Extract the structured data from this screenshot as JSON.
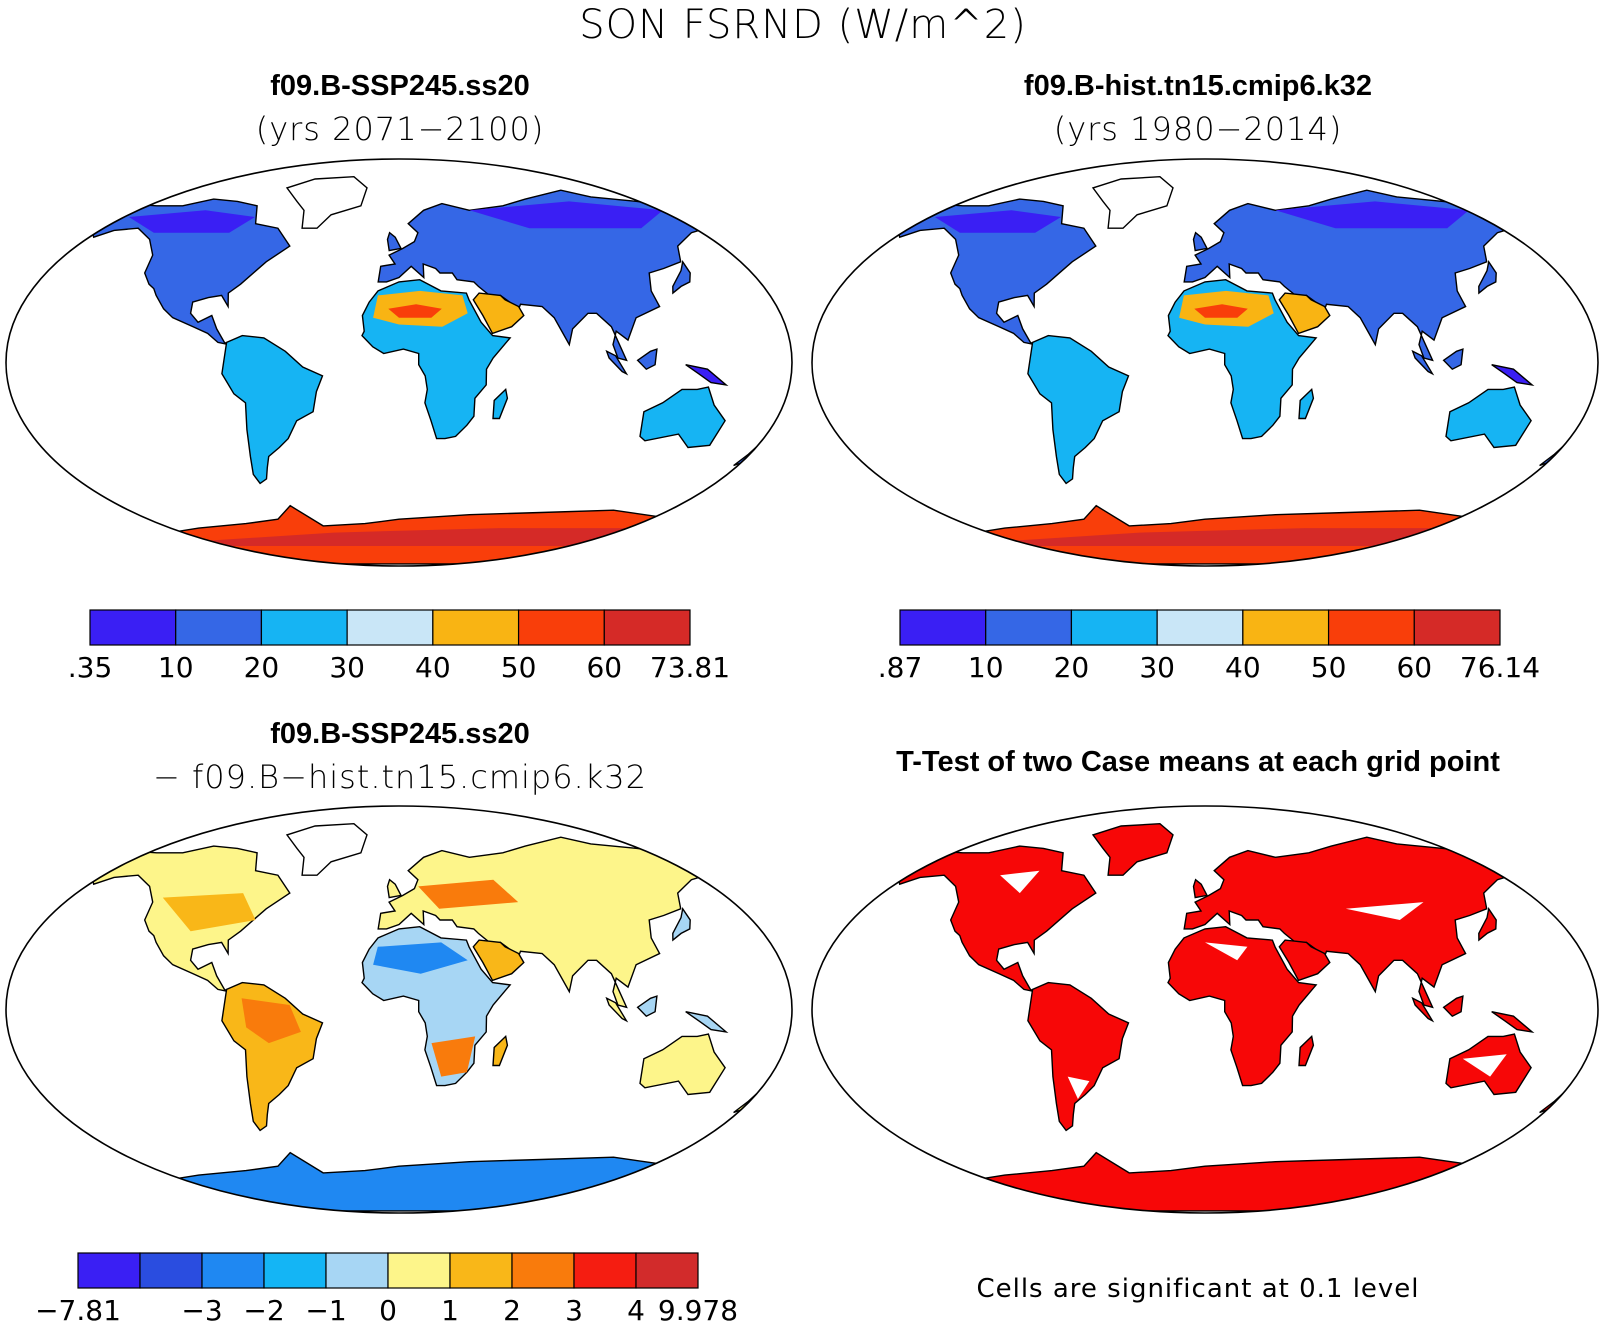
{
  "title": "SON FSRND (W/m^2)",
  "panels": [
    {
      "id": "p1",
      "title": "f09.B-SSP245.ss20",
      "subtitle": "(yrs 2071−2100)",
      "colorbar": {
        "colors": [
          "#3a1ff4",
          "#3567e6",
          "#16b4f3",
          "#c9e6f7",
          "#f9b413",
          "#f93e0a",
          "#d52a27"
        ],
        "labels": [
          ".35",
          "10",
          "20",
          "30",
          "40",
          "50",
          "60",
          "73.81"
        ]
      },
      "land_class": "base"
    },
    {
      "id": "p2",
      "title": "f09.B-hist.tn15.cmip6.k32",
      "subtitle": "(yrs 1980−2014)",
      "colorbar": {
        "colors": [
          "#3a1ff4",
          "#3567e6",
          "#16b4f3",
          "#c9e6f7",
          "#f9b413",
          "#f93e0a",
          "#d52a27"
        ],
        "labels": [
          ".87",
          "10",
          "20",
          "30",
          "40",
          "50",
          "60",
          "76.14"
        ]
      },
      "land_class": "base"
    },
    {
      "id": "p3",
      "title": "f09.B-SSP245.ss20",
      "subtitle": "− f09.B−hist.tn15.cmip6.k32",
      "colorbar": {
        "colors": [
          "#3a1ff4",
          "#2a4de0",
          "#1f88f2",
          "#14b5f5",
          "#a7d6f4",
          "#fdf58a",
          "#f9b718",
          "#f97b0c",
          "#f51d11",
          "#d22b2b"
        ],
        "labels": [
          "−7.81",
          "",
          "−3",
          "−2",
          "−1",
          "0",
          "1",
          "2",
          "3",
          "4",
          "9.978"
        ]
      },
      "land_class": "diff"
    },
    {
      "id": "p4",
      "title": "T-Test of two Case means at each grid point",
      "note": "Cells are significant at 0.1 level",
      "land_class": "ttest"
    }
  ],
  "map_palette": {
    "ocean": "#ffffff",
    "outline": "#000000",
    "significant": "#f70707"
  }
}
